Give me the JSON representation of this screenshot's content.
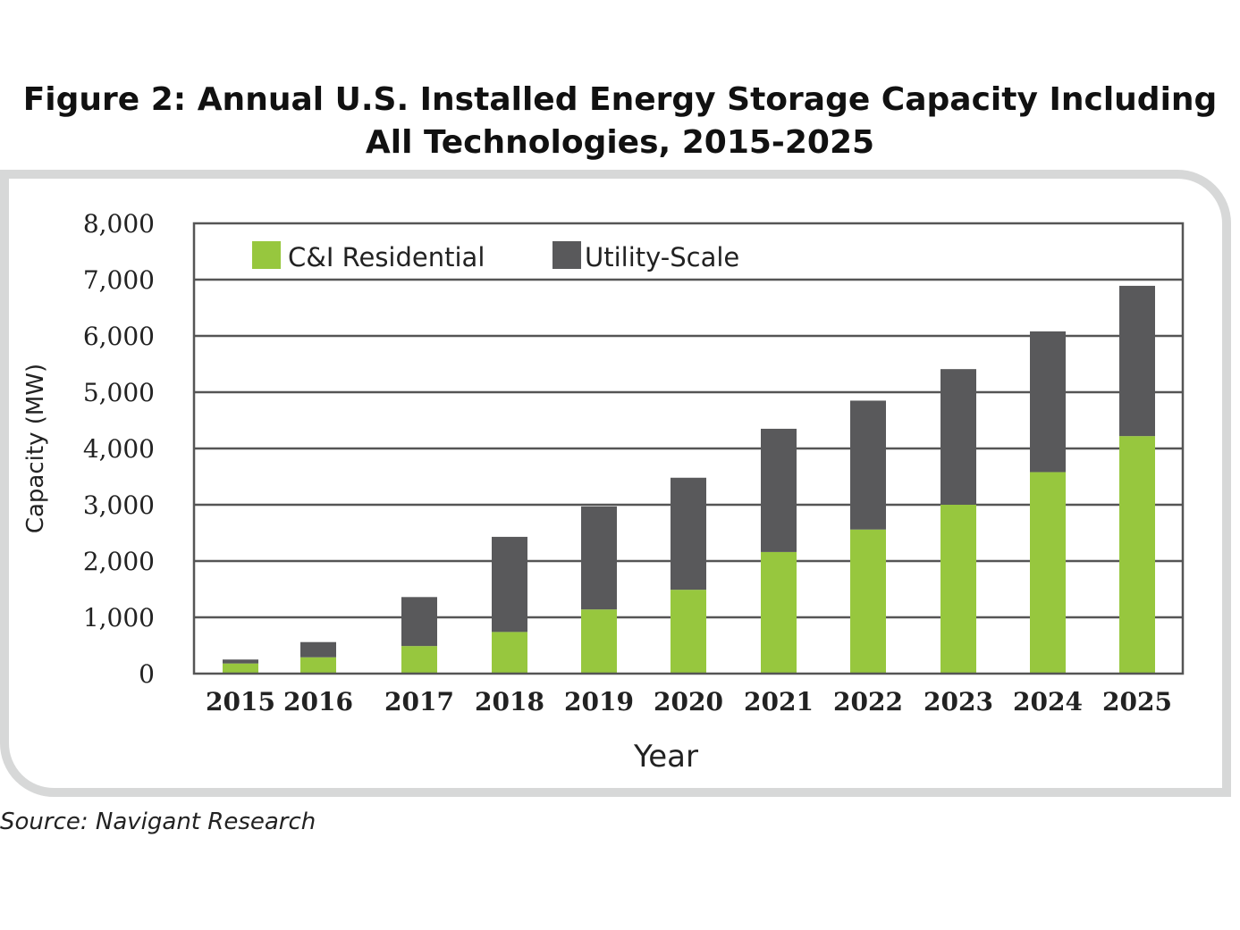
{
  "chart_data": {
    "type": "bar",
    "stacked": true,
    "title": "Figure 2: Annual U.S. Installed Energy Storage Capacity Including All Technologies, 2015-2025",
    "title_lines": [
      "Figure 2: Annual U.S. Installed Energy Storage Capacity Including",
      "All Technologies, 2015-2025"
    ],
    "xlabel": "Year",
    "ylabel": "Capacity (MW)",
    "ylim": [
      0,
      8000
    ],
    "yticks": [
      0,
      1000,
      2000,
      3000,
      4000,
      5000,
      6000,
      7000,
      8000
    ],
    "ytick_labels": [
      "0",
      "1,000",
      "2,000",
      "3,000",
      "4,000",
      "5,000",
      "6,000",
      "7,000",
      "8,000"
    ],
    "grid": true,
    "legend_position": "top-left",
    "categories": [
      "2015",
      "2016",
      "2017",
      "2018",
      "2019",
      "2020",
      "2021",
      "2022",
      "2023",
      "2024",
      "2025"
    ],
    "series": [
      {
        "name": "C&I Residential",
        "color": "#97c73e",
        "values": [
          180,
          290,
          490,
          740,
          1140,
          1490,
          2160,
          2560,
          3000,
          3580,
          4220
        ]
      },
      {
        "name": "Utility-Scale",
        "color": "#59595b",
        "values": [
          70,
          270,
          870,
          1690,
          1830,
          1990,
          2190,
          2290,
          2410,
          2500,
          2670
        ]
      }
    ]
  },
  "source": "Source: Navigant Research"
}
